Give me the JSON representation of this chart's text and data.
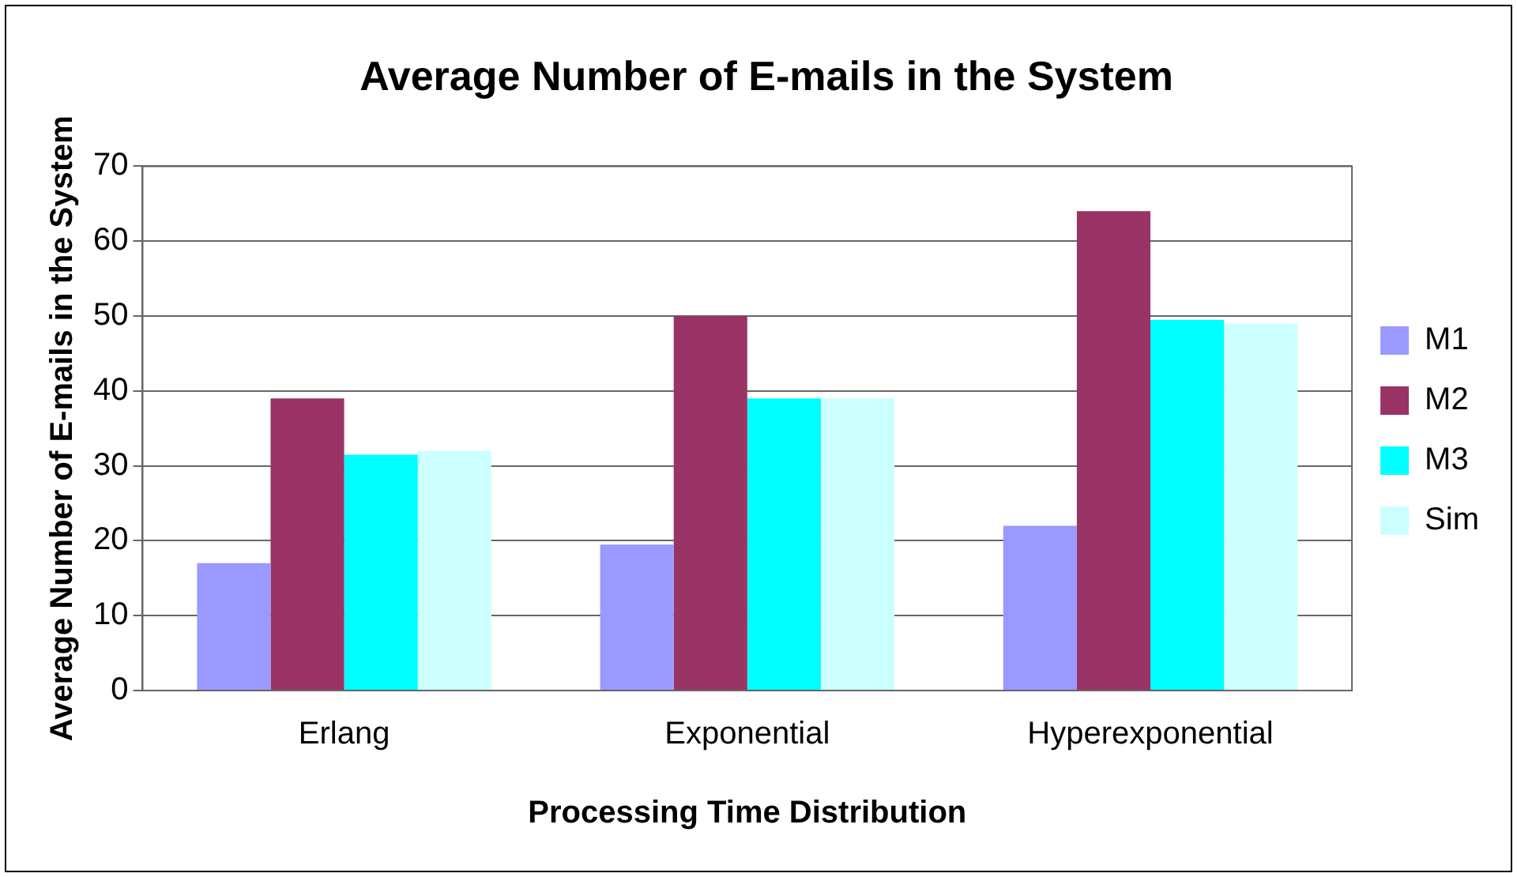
{
  "chart_data": {
    "type": "bar",
    "title": "Average Number of E-mails in the System",
    "xlabel": "Processing Time Distribution",
    "ylabel": "Average Number of E-mails in the System",
    "categories": [
      "Erlang",
      "Exponential",
      "Hyperexponential"
    ],
    "series": [
      {
        "name": "M1",
        "color": "#9999ff",
        "values": [
          17,
          19.5,
          22
        ]
      },
      {
        "name": "M2",
        "color": "#993366",
        "values": [
          39,
          50,
          64
        ]
      },
      {
        "name": "M3",
        "color": "#00ffff",
        "values": [
          31.5,
          39,
          49.5
        ]
      },
      {
        "name": "Sim",
        "color": "#ccffff",
        "values": [
          32,
          39,
          49
        ]
      }
    ],
    "ylim": [
      0,
      70
    ],
    "yticks": [
      0,
      10,
      20,
      30,
      40,
      50,
      60,
      70
    ],
    "grid": "y",
    "legend": "right"
  }
}
